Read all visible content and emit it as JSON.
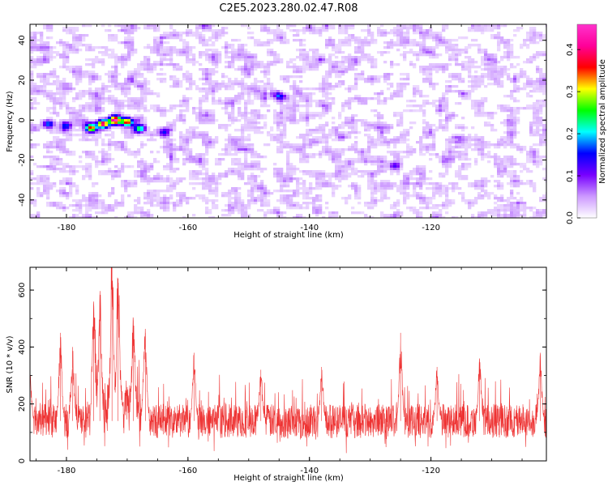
{
  "title": "C2E5.2023.280.02.47.R08",
  "chart_data": [
    {
      "type": "heatmap",
      "xlabel": "Height of straight line (km)",
      "ylabel": "Frequency (Hz)",
      "xlim": [
        -186,
        -101
      ],
      "ylim": [
        -49,
        48
      ],
      "xticks": [
        -180,
        -160,
        -140,
        -120
      ],
      "yticks": [
        -40,
        -20,
        0,
        20,
        40
      ],
      "grid": false,
      "colorbar": {
        "label": "Normalized spectral amplitude",
        "range": [
          0,
          0.46
        ],
        "ticks": [
          "0.0",
          "0.1",
          "0.2",
          "0.3",
          "0.4"
        ],
        "colors": [
          "#ffffff",
          "#cc99ff",
          "#7700ff",
          "#0000ff",
          "#00ffff",
          "#00ff00",
          "#ffff00",
          "#ff0000",
          "#ff0099",
          "#ff33cc"
        ]
      },
      "features": [
        {
          "x": -174,
          "y": -2,
          "value": 0.42
        },
        {
          "x": -172,
          "y": 0,
          "value": 0.45
        },
        {
          "x": -170,
          "y": -1,
          "value": 0.38
        },
        {
          "x": -176,
          "y": -4,
          "value": 0.33
        },
        {
          "x": -168,
          "y": -4,
          "value": 0.22
        },
        {
          "x": -183,
          "y": -2,
          "value": 0.18
        },
        {
          "x": -180,
          "y": -3,
          "value": 0.14
        },
        {
          "x": -164,
          "y": -6,
          "value": 0.12
        },
        {
          "x": -145,
          "y": 12,
          "value": 0.12
        },
        {
          "x": -126,
          "y": -23,
          "value": 0.12
        }
      ]
    },
    {
      "type": "line",
      "xlabel": "Height of straight line (km)",
      "ylabel": "SNR (10 * v/v)",
      "xlim": [
        -186,
        -101
      ],
      "ylim": [
        0,
        680
      ],
      "xticks": [
        -180,
        -160,
        -140,
        -120
      ],
      "yticks": [
        0,
        200,
        400,
        600
      ],
      "grid": false,
      "series": [
        {
          "color": "#ee3333",
          "baseline": 140,
          "spread": 60,
          "peaks": [
            {
              "x": -186,
              "y": 310
            },
            {
              "x": -181,
              "y": 450
            },
            {
              "x": -179,
              "y": 400
            },
            {
              "x": -175.5,
              "y": 530
            },
            {
              "x": -174.5,
              "y": 560
            },
            {
              "x": -172.5,
              "y": 680
            },
            {
              "x": -171.5,
              "y": 640
            },
            {
              "x": -169,
              "y": 480
            },
            {
              "x": -167,
              "y": 450
            },
            {
              "x": -159,
              "y": 380
            },
            {
              "x": -148,
              "y": 320
            },
            {
              "x": -138,
              "y": 330
            },
            {
              "x": -125,
              "y": 450
            },
            {
              "x": -119,
              "y": 330
            },
            {
              "x": -112,
              "y": 360
            },
            {
              "x": -102,
              "y": 380
            }
          ]
        }
      ]
    }
  ]
}
